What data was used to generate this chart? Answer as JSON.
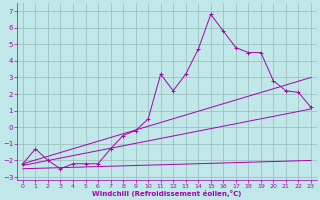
{
  "xlabel": "Windchill (Refroidissement éolien,°C)",
  "xlim": [
    -0.5,
    23.5
  ],
  "ylim": [
    -3.2,
    7.5
  ],
  "xticks": [
    0,
    1,
    2,
    3,
    4,
    5,
    6,
    7,
    8,
    9,
    10,
    11,
    12,
    13,
    14,
    15,
    16,
    17,
    18,
    19,
    20,
    21,
    22,
    23
  ],
  "yticks": [
    -3,
    -2,
    -1,
    0,
    1,
    2,
    3,
    4,
    5,
    6,
    7
  ],
  "bg_color": "#c0e8e8",
  "line_color": "#aa00aa",
  "grid_color": "#99bbbb",
  "data_x": [
    0,
    1,
    2,
    3,
    4,
    5,
    6,
    7,
    8,
    9,
    10,
    11,
    12,
    13,
    14,
    15,
    16,
    17,
    18,
    19,
    20,
    21,
    22,
    23
  ],
  "data_y": [
    -2.2,
    -1.3,
    -2.0,
    -2.5,
    -2.2,
    -2.2,
    -2.2,
    -1.3,
    -0.5,
    -0.2,
    0.5,
    3.2,
    2.2,
    3.2,
    4.7,
    6.8,
    5.8,
    4.8,
    4.5,
    4.5,
    2.8,
    2.2,
    2.1,
    1.2
  ],
  "straight_lines": [
    {
      "x0": 0,
      "y0": -2.2,
      "x1": 23,
      "y1": 3.0
    },
    {
      "x0": 0,
      "y0": -2.3,
      "x1": 23,
      "y1": 1.1
    },
    {
      "x0": 0,
      "y0": -2.5,
      "x1": 23,
      "y1": -2.0
    }
  ]
}
